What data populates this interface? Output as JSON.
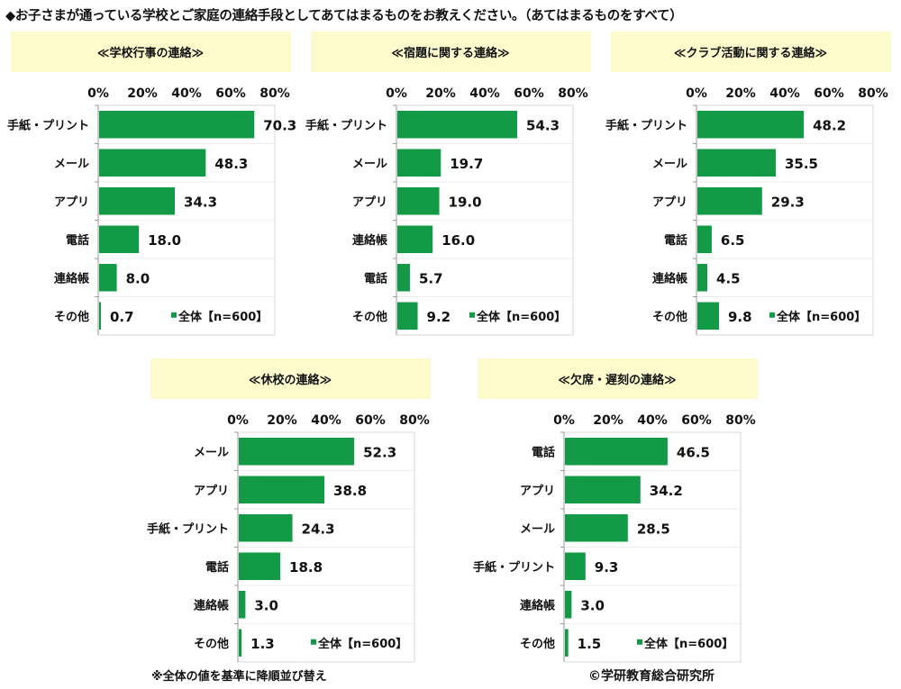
{
  "title": "◆お子さまが通っている学校とご家庭の連絡手段としてあてはまるものをお教えください。（あてはまるものをすべて）",
  "note": "※全体の値を基準に降順並び替え",
  "credit": "©学研教育総合研究所",
  "colors": {
    "bar": "#139a46",
    "header_bg": "#fdfbcc",
    "grid": "#d9d9d9"
  },
  "chart_data": [
    {
      "type": "bar",
      "orientation": "horizontal",
      "title": "≪学校行事の連絡≫",
      "categories": [
        "手紙・プリント",
        "メール",
        "アプリ",
        "電話",
        "連絡帳",
        "その他"
      ],
      "values": [
        70.3,
        48.3,
        34.3,
        18.0,
        8.0,
        0.7
      ],
      "xlim": [
        0,
        80
      ],
      "ticks": [
        "0%",
        "20%",
        "40%",
        "60%",
        "80%"
      ],
      "legend": "全体【n=600】",
      "legend_position": "bottom-right"
    },
    {
      "type": "bar",
      "orientation": "horizontal",
      "title": "≪宿題に関する連絡≫",
      "categories": [
        "手紙・プリント",
        "メール",
        "アプリ",
        "連絡帳",
        "電話",
        "その他"
      ],
      "values": [
        54.3,
        19.7,
        19.0,
        16.0,
        5.7,
        9.2
      ],
      "xlim": [
        0,
        80
      ],
      "ticks": [
        "0%",
        "20%",
        "40%",
        "60%",
        "80%"
      ],
      "legend": "全体【n=600】",
      "legend_position": "bottom-right"
    },
    {
      "type": "bar",
      "orientation": "horizontal",
      "title": "≪クラブ活動に関する連絡≫",
      "categories": [
        "手紙・プリント",
        "メール",
        "アプリ",
        "電話",
        "連絡帳",
        "その他"
      ],
      "values": [
        48.2,
        35.5,
        29.3,
        6.5,
        4.5,
        9.8
      ],
      "xlim": [
        0,
        80
      ],
      "ticks": [
        "0%",
        "20%",
        "40%",
        "60%",
        "80%"
      ],
      "legend": "全体【n=600】",
      "legend_position": "bottom-right"
    },
    {
      "type": "bar",
      "orientation": "horizontal",
      "title": "≪休校の連絡≫",
      "categories": [
        "メール",
        "アプリ",
        "手紙・プリント",
        "電話",
        "連絡帳",
        "その他"
      ],
      "values": [
        52.3,
        38.8,
        24.3,
        18.8,
        3.0,
        1.3
      ],
      "xlim": [
        0,
        80
      ],
      "ticks": [
        "0%",
        "20%",
        "40%",
        "60%",
        "80%"
      ],
      "legend": "全体【n=600】",
      "legend_position": "bottom-right"
    },
    {
      "type": "bar",
      "orientation": "horizontal",
      "title": "≪欠席・遅刻の連絡≫",
      "categories": [
        "電話",
        "アプリ",
        "メール",
        "手紙・プリント",
        "連絡帳",
        "その他"
      ],
      "values": [
        46.5,
        34.2,
        28.5,
        9.3,
        3.0,
        1.5
      ],
      "xlim": [
        0,
        80
      ],
      "ticks": [
        "0%",
        "20%",
        "40%",
        "60%",
        "80%"
      ],
      "legend": "全体【n=600】",
      "legend_position": "bottom-right"
    }
  ]
}
